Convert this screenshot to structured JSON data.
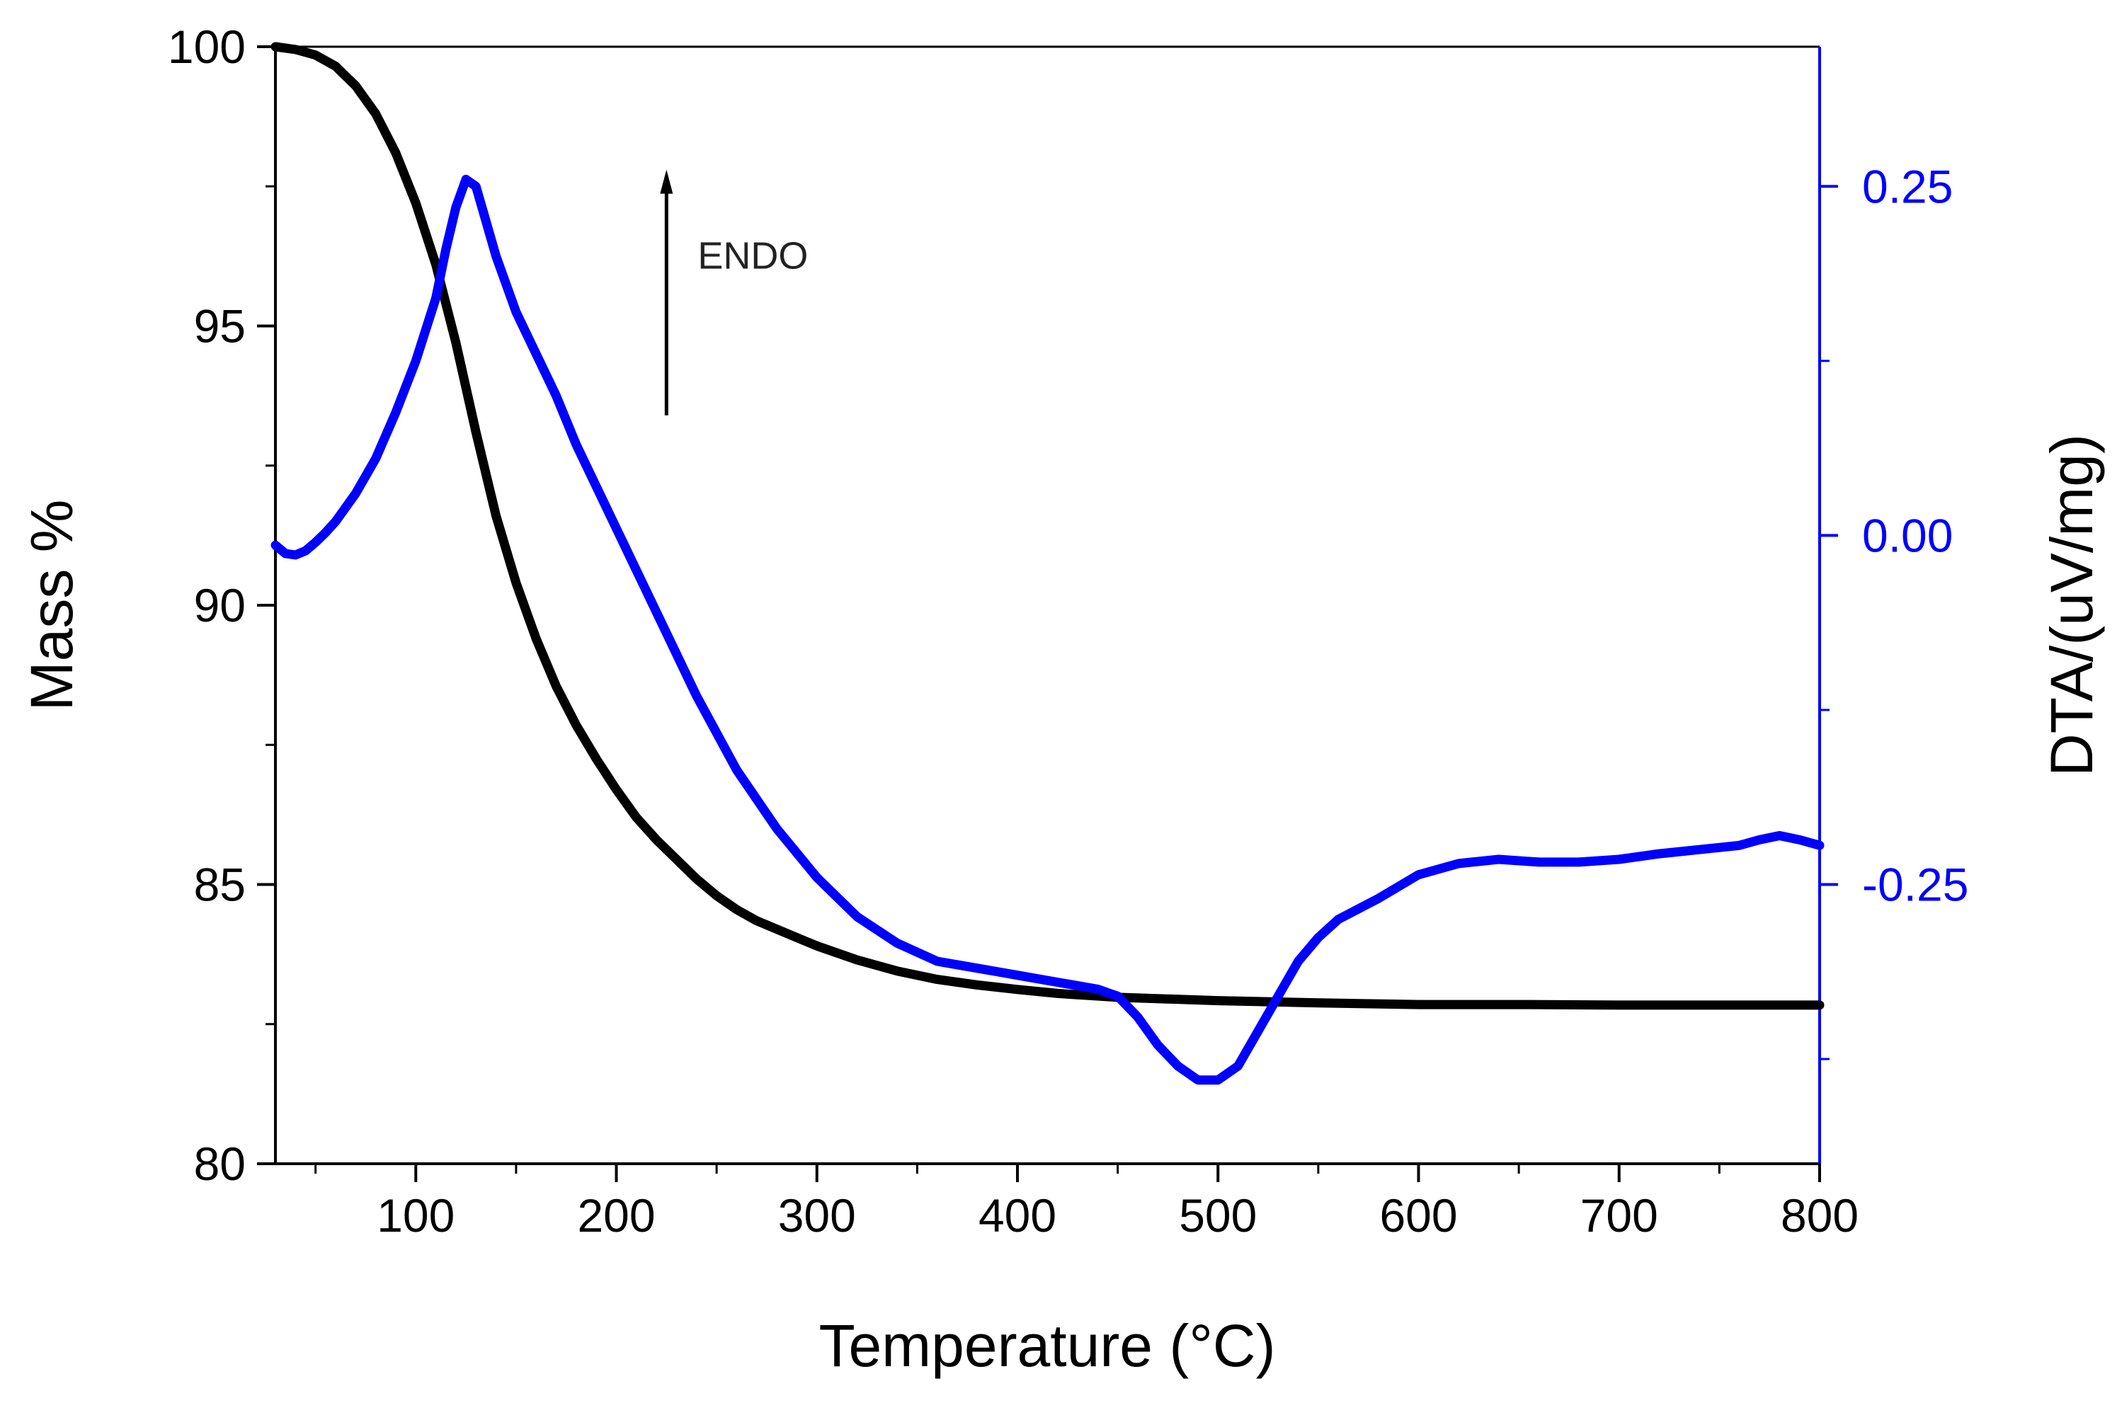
{
  "chart_data": {
    "type": "line",
    "title": "",
    "xlabel": "Temperature (°C)",
    "ylabel_left": "Mass %",
    "ylabel_right": "DTA/(uV/mg)",
    "xlim": [
      30,
      800
    ],
    "ylim_left": [
      80,
      100
    ],
    "ylim_right": [
      -0.45,
      0.35
    ],
    "x_ticks": [
      100,
      200,
      300,
      400,
      500,
      600,
      700,
      800
    ],
    "x_tick_labels": [
      "100",
      "200",
      "300",
      "400",
      "500",
      "600",
      "700",
      "800"
    ],
    "y_left_ticks": [
      80,
      85,
      90,
      95,
      100
    ],
    "y_left_tick_labels": [
      "80",
      "85",
      "90",
      "95",
      "100"
    ],
    "y_right_ticks": [
      -0.25,
      0.0,
      0.25
    ],
    "y_right_tick_labels": [
      "-0.25",
      "0.00",
      "0.25"
    ],
    "grid": false,
    "annotation": {
      "text": "ENDO",
      "arrow_x": 225,
      "arrow_from": 93.4,
      "arrow_to": 97.8
    },
    "colors": {
      "tga": "#000000",
      "dta": "#0000ff",
      "right_axis": "#0000ff"
    },
    "series": [
      {
        "name": "TG (Mass %)",
        "axis": "left",
        "color": "#000000",
        "x": [
          30,
          40,
          50,
          60,
          70,
          80,
          90,
          100,
          110,
          120,
          130,
          140,
          150,
          160,
          170,
          180,
          190,
          200,
          210,
          220,
          230,
          240,
          250,
          260,
          270,
          280,
          290,
          300,
          320,
          340,
          360,
          380,
          400,
          420,
          450,
          500,
          550,
          600,
          650,
          700,
          750,
          800
        ],
        "y": [
          100.0,
          99.95,
          99.85,
          99.65,
          99.3,
          98.8,
          98.1,
          97.2,
          96.1,
          94.7,
          93.1,
          91.6,
          90.4,
          89.4,
          88.55,
          87.85,
          87.25,
          86.7,
          86.2,
          85.8,
          85.45,
          85.1,
          84.8,
          84.55,
          84.35,
          84.2,
          84.05,
          83.9,
          83.65,
          83.45,
          83.3,
          83.2,
          83.12,
          83.05,
          82.98,
          82.92,
          82.88,
          82.85,
          82.85,
          82.84,
          82.84,
          82.84
        ]
      },
      {
        "name": "DTA",
        "axis": "right",
        "color": "#0000ff",
        "x": [
          30,
          35,
          40,
          45,
          50,
          55,
          60,
          70,
          80,
          90,
          100,
          110,
          115,
          120,
          125,
          130,
          135,
          140,
          150,
          160,
          170,
          180,
          190,
          200,
          220,
          240,
          260,
          280,
          300,
          320,
          340,
          360,
          380,
          400,
          420,
          440,
          450,
          460,
          470,
          480,
          490,
          500,
          510,
          520,
          530,
          540,
          550,
          560,
          580,
          600,
          620,
          640,
          660,
          680,
          700,
          720,
          740,
          760,
          770,
          780,
          790,
          800
        ],
        "y": [
          -0.007,
          -0.013,
          -0.014,
          -0.011,
          -0.005,
          0.002,
          0.01,
          0.03,
          0.055,
          0.088,
          0.125,
          0.17,
          0.205,
          0.235,
          0.255,
          0.25,
          0.225,
          0.2,
          0.16,
          0.13,
          0.1,
          0.065,
          0.035,
          0.005,
          -0.055,
          -0.115,
          -0.168,
          -0.21,
          -0.245,
          -0.273,
          -0.292,
          -0.305,
          -0.31,
          -0.315,
          -0.32,
          -0.325,
          -0.33,
          -0.345,
          -0.365,
          -0.38,
          -0.39,
          -0.39,
          -0.38,
          -0.355,
          -0.33,
          -0.305,
          -0.288,
          -0.275,
          -0.26,
          -0.243,
          -0.235,
          -0.232,
          -0.234,
          -0.234,
          -0.232,
          -0.228,
          -0.225,
          -0.222,
          -0.218,
          -0.215,
          -0.218,
          -0.222
        ]
      }
    ]
  }
}
